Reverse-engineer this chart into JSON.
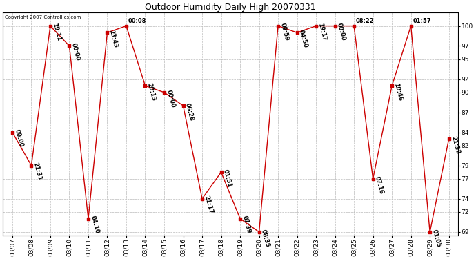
{
  "title": "Outdoor Humidity Daily High 20070331",
  "copyright": "Copyright 2007 Controllics.com",
  "dates": [
    "03/07",
    "03/08",
    "03/09",
    "03/10",
    "03/11",
    "03/12",
    "03/13",
    "03/14",
    "03/15",
    "03/16",
    "03/17",
    "03/18",
    "03/19",
    "03/20",
    "03/21",
    "03/22",
    "03/23",
    "03/24",
    "03/25",
    "03/26",
    "03/27",
    "03/28",
    "03/29",
    "03/30"
  ],
  "values": [
    84,
    79,
    100,
    97,
    71,
    99,
    100,
    91,
    90,
    88,
    74,
    78,
    71,
    69,
    100,
    99,
    100,
    100,
    100,
    77,
    91,
    100,
    69,
    83
  ],
  "labels": [
    "00:00",
    "21:31",
    "19:11",
    "00:00",
    "04:10",
    "23:43",
    "00:08",
    "20:13",
    "00:00",
    "06:28",
    "21:17",
    "01:51",
    "07:39",
    "08:35",
    "09:59",
    "04:50",
    "19:17",
    "00:00",
    "08:22",
    "07:16",
    "10:46",
    "01:57",
    "01:05",
    "21:32"
  ],
  "label_rotations": [
    -75,
    -75,
    -75,
    -75,
    -75,
    -75,
    0,
    -75,
    -75,
    -75,
    -75,
    -75,
    -75,
    -75,
    -75,
    -75,
    -75,
    -75,
    0,
    -75,
    -75,
    0,
    -75,
    -75
  ],
  "ylim": [
    69,
    100
  ],
  "yticks": [
    69,
    72,
    74,
    77,
    79,
    82,
    84,
    87,
    90,
    92,
    95,
    97,
    100
  ],
  "line_color": "#cc0000",
  "marker_color": "#cc0000",
  "bg_color": "#ffffff",
  "grid_color": "#bbbbbb",
  "title_fontsize": 9,
  "label_fontsize": 6,
  "tick_fontsize": 6.5,
  "copyright_fontsize": 5
}
